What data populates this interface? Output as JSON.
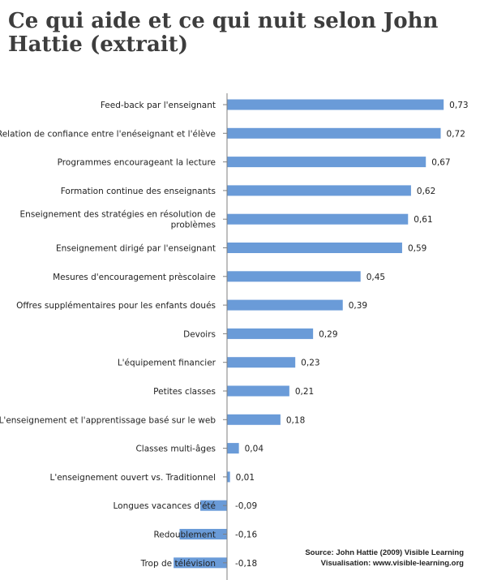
{
  "header": {
    "title": "Ce qui aide et ce qui nuit selon John Hattie (extrait)"
  },
  "source": {
    "line1": "Source: John Hattie (2009) Visible Learning",
    "line2": "Visualisation: www.visible-learning.org"
  },
  "chart_data": {
    "type": "bar",
    "orientation": "horizontal",
    "categories": [
      "Feed-back par l'enseignant",
      "Relation de confiance entre l'enéseignant et l'élève",
      "Programmes encourageant la lecture",
      "Formation continue des enseignants",
      "Enseignement des stratégies en résolution de problèmes",
      "Enseignement dirigé par l'enseignant",
      "Mesures d'encouragement prèscolaire",
      "Offres supplémentaires pour les enfants doués",
      "Devoirs",
      "L'équipement financier",
      "Petites classes",
      "L'enseignement et l'apprentissage basé sur le web",
      "Classes multi-âges",
      "L'enseignement ouvert vs. Traditionnel",
      "Longues vacances d'été",
      "Redoublement",
      "Trop de télévision"
    ],
    "category_lines": [
      [
        "Feed-back par l'enseignant"
      ],
      [
        "Relation de confiance entre l'enéseignant et l'élève"
      ],
      [
        "Programmes encourageant la lecture"
      ],
      [
        "Formation continue des enseignants"
      ],
      [
        "Enseignement des stratégies en résolution de",
        "problèmes"
      ],
      [
        "Enseignement dirigé par l'enseignant"
      ],
      [
        "Mesures d'encouragement prèscolaire"
      ],
      [
        "Offres supplémentaires pour les enfants doués"
      ],
      [
        "Devoirs"
      ],
      [
        "L'équipement financier"
      ],
      [
        "Petites classes"
      ],
      [
        "L'enseignement et l'apprentissage basé sur le web"
      ],
      [
        "Classes multi-âges"
      ],
      [
        "L'enseignement ouvert vs. Traditionnel"
      ],
      [
        "Longues vacances d'été"
      ],
      [
        "Redoublement"
      ],
      [
        "Trop de télévision"
      ]
    ],
    "values": [
      0.73,
      0.72,
      0.67,
      0.62,
      0.61,
      0.59,
      0.45,
      0.39,
      0.29,
      0.23,
      0.21,
      0.18,
      0.04,
      0.01,
      -0.09,
      -0.16,
      -0.18
    ],
    "value_labels": [
      "0,73",
      "0,72",
      "0,67",
      "0,62",
      "0,61",
      "0,59",
      "0,45",
      "0,39",
      "0,29",
      "0,23",
      "0,21",
      "0,18",
      "0,04",
      "0,01",
      "-0,09",
      "-0,16",
      "-0,18"
    ],
    "bar_color": "#6a9bd8",
    "axis_color": "#7f7f7f",
    "xlim": [
      -0.2,
      0.75
    ],
    "grid": false,
    "legend": "none"
  }
}
